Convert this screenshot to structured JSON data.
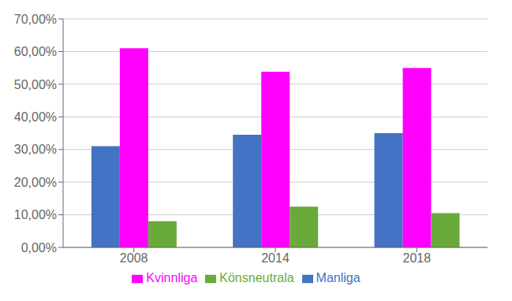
{
  "chart_data": {
    "type": "bar",
    "categories": [
      "2008",
      "2014",
      "2018"
    ],
    "series": [
      {
        "name": "Manliga",
        "color": "#4472C4",
        "values": [
          0.31,
          0.345,
          0.35
        ]
      },
      {
        "name": "Kvinnliga",
        "color": "#FF00FF",
        "values": [
          0.61,
          0.538,
          0.55
        ]
      },
      {
        "name": "Könsneutrala",
        "color": "#6aaa3a",
        "values": [
          0.08,
          0.125,
          0.105
        ]
      }
    ],
    "ylim": [
      0.0,
      0.7
    ],
    "yticks": [
      {
        "value": 0.0,
        "label": "0,00%"
      },
      {
        "value": 0.1,
        "label": "10,00%"
      },
      {
        "value": 0.2,
        "label": "20,00%"
      },
      {
        "value": 0.3,
        "label": "30,00%"
      },
      {
        "value": 0.4,
        "label": "40,00%"
      },
      {
        "value": 0.5,
        "label": "50,00%"
      },
      {
        "value": 0.6,
        "label": "60,00%"
      },
      {
        "value": 0.7,
        "label": "70,00%"
      }
    ],
    "grid": true,
    "legend": "bottom"
  }
}
